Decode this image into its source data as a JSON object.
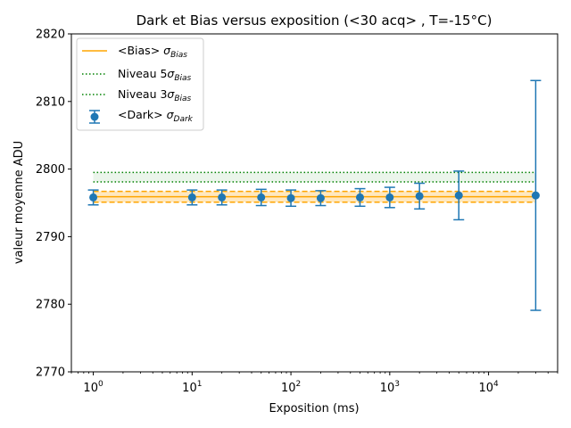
{
  "chart_data": {
    "type": "scatter",
    "title": "Dark et Bias versus exposition (<30 acq> , T=-15°C)",
    "xlabel": "Exposition (ms)",
    "ylabel": "valeur moyenne ADU",
    "xscale": "log",
    "xlim": [
      0.6,
      50000
    ],
    "ylim": [
      2770,
      2820
    ],
    "yticks": [
      2770,
      2780,
      2790,
      2800,
      2810,
      2820
    ],
    "ytick_labels": [
      "2770",
      "2780",
      "2790",
      "2800",
      "2810",
      "2820"
    ],
    "xticks": [
      1,
      10,
      100,
      1000,
      10000
    ],
    "xtick_bases": [
      "10",
      "10",
      "10",
      "10",
      "10"
    ],
    "xtick_exponents": [
      "0",
      "1",
      "2",
      "3",
      "4"
    ],
    "x_extent": [
      1,
      30000
    ],
    "bias": {
      "mean": 2795.9,
      "sigma_upper": 2796.7,
      "sigma_lower": 2795.1,
      "color": "#ffa500"
    },
    "niveau_5sigma": {
      "value": 2799.5,
      "color": "#008000"
    },
    "niveau_3sigma": {
      "value": 2798.1,
      "color": "#008000"
    },
    "dark": {
      "color": "#1f77b4",
      "x": [
        1,
        10,
        20,
        50,
        100,
        200,
        500,
        1000,
        2000,
        5000,
        30000
      ],
      "y": [
        2795.8,
        2795.8,
        2795.8,
        2795.8,
        2795.7,
        2795.7,
        2795.8,
        2795.8,
        2796.0,
        2796.1,
        2796.1
      ],
      "err": [
        1.1,
        1.1,
        1.1,
        1.2,
        1.2,
        1.1,
        1.3,
        1.5,
        1.9,
        3.6,
        17.0
      ]
    },
    "legend": {
      "position": "top-left",
      "entries": [
        {
          "label": "<Bias> ",
          "symbol": "σ",
          "subscript": "Bias"
        },
        {
          "label": "Niveau 5",
          "symbol": "σ",
          "subscript": "Bias"
        },
        {
          "label": "Niveau 3",
          "symbol": "σ",
          "subscript": "Bias"
        },
        {
          "label": "<Dark> ",
          "symbol": "σ",
          "subscript": "Dark"
        }
      ]
    }
  }
}
